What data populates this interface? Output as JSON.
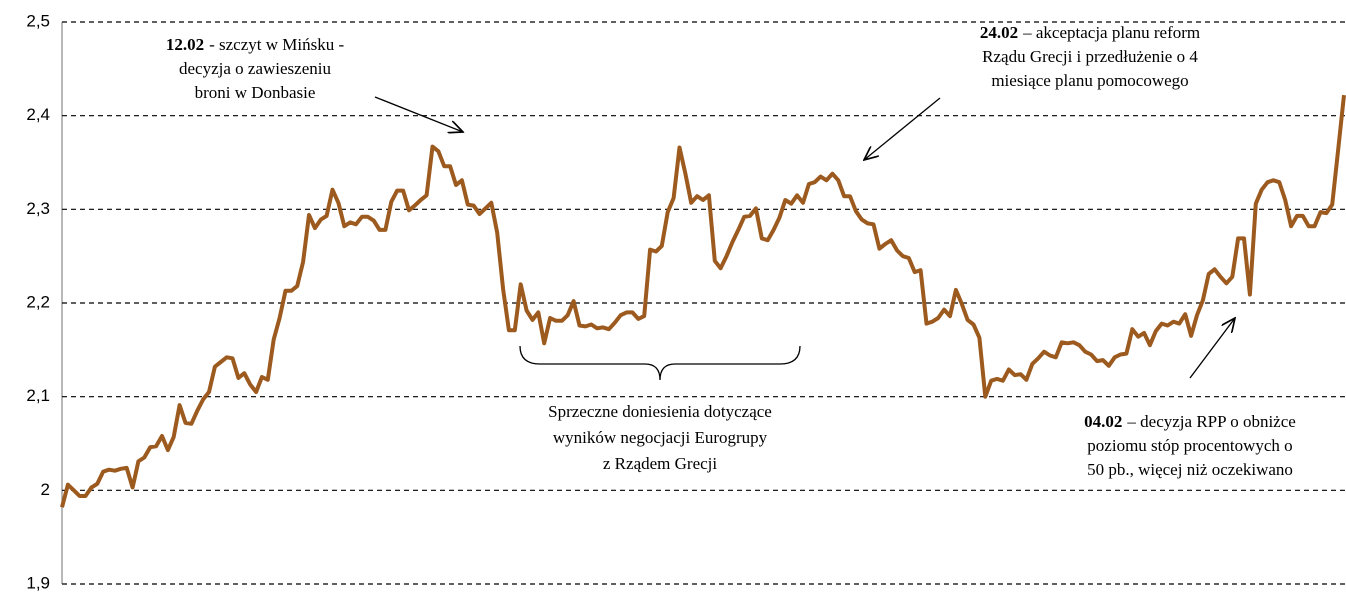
{
  "chart_data": {
    "type": "line",
    "color": "#9c5a1f",
    "grid": true,
    "ylim": [
      1.9,
      2.5
    ],
    "yticks": [
      {
        "value": 1.9,
        "label": "1,9"
      },
      2,
      {
        "value": 2.1,
        "label": "2,1"
      },
      {
        "value": 2.2,
        "label": "2,2"
      },
      {
        "value": 2.3,
        "label": "2,3"
      },
      {
        "value": 2.4,
        "label": "2,4"
      },
      {
        "value": 2.5,
        "label": "2,5"
      }
    ],
    "values": [
      1.982,
      2.006,
      2.0,
      1.994,
      1.994,
      2.003,
      2.007,
      2.02,
      2.022,
      2.021,
      2.023,
      2.024,
      2.003,
      2.031,
      2.035,
      2.046,
      2.047,
      2.058,
      2.043,
      2.057,
      2.091,
      2.072,
      2.071,
      2.085,
      2.097,
      2.105,
      2.132,
      2.137,
      2.142,
      2.141,
      2.12,
      2.125,
      2.113,
      2.105,
      2.121,
      2.118,
      2.161,
      2.184,
      2.213,
      2.213,
      2.218,
      2.244,
      2.294,
      2.28,
      2.289,
      2.293,
      2.321,
      2.307,
      2.282,
      2.286,
      2.284,
      2.292,
      2.292,
      2.288,
      2.278,
      2.278,
      2.308,
      2.32,
      2.32,
      2.299,
      2.304,
      2.31,
      2.315,
      2.367,
      2.362,
      2.346,
      2.346,
      2.326,
      2.331,
      2.305,
      2.304,
      2.295,
      2.301,
      2.307,
      2.275,
      2.215,
      2.171,
      2.171,
      2.22,
      2.192,
      2.182,
      2.19,
      2.157,
      2.184,
      2.181,
      2.181,
      2.187,
      2.202,
      2.176,
      2.175,
      2.177,
      2.173,
      2.174,
      2.172,
      2.179,
      2.187,
      2.19,
      2.19,
      2.183,
      2.186,
      2.257,
      2.255,
      2.261,
      2.297,
      2.312,
      2.366,
      2.338,
      2.307,
      2.314,
      2.31,
      2.315,
      2.245,
      2.237,
      2.25,
      2.265,
      2.278,
      2.292,
      2.293,
      2.301,
      2.269,
      2.267,
      2.278,
      2.291,
      2.31,
      2.306,
      2.315,
      2.307,
      2.327,
      2.329,
      2.335,
      2.331,
      2.338,
      2.331,
      2.314,
      2.314,
      2.298,
      2.289,
      2.285,
      2.284,
      2.258,
      2.263,
      2.267,
      2.256,
      2.25,
      2.248,
      2.233,
      2.235,
      2.178,
      2.18,
      2.184,
      2.193,
      2.186,
      2.214,
      2.199,
      2.182,
      2.177,
      2.163,
      2.1,
      2.117,
      2.119,
      2.117,
      2.129,
      2.123,
      2.124,
      2.118,
      2.135,
      2.141,
      2.148,
      2.144,
      2.142,
      2.158,
      2.157,
      2.158,
      2.155,
      2.148,
      2.145,
      2.138,
      2.139,
      2.133,
      2.142,
      2.145,
      2.146,
      2.172,
      2.164,
      2.168,
      2.155,
      2.17,
      2.178,
      2.176,
      2.18,
      2.178,
      2.188,
      2.165,
      2.187,
      2.203,
      2.231,
      2.236,
      2.228,
      2.221,
      2.228,
      2.269,
      2.269,
      2.209,
      2.306,
      2.321,
      2.329,
      2.331,
      2.329,
      2.31,
      2.282,
      2.293,
      2.293,
      2.282,
      2.282,
      2.297,
      2.296,
      2.305,
      2.363,
      2.422
    ],
    "annotations": [
      {
        "bold": "12.02",
        "lines": [
          "- szczyt w Mińsku -",
          "decyzja o zawieszeniu",
          "broni w Donbasie"
        ]
      },
      {
        "bold": "24.02",
        "lines": [
          "– akceptacja planu reform",
          "Rządu Grecji i przedłużenie o 4",
          "miesiące planu pomocowego"
        ]
      },
      {
        "lines": [
          "Sprzeczne doniesienia dotyczące",
          "wyników negocjacji Eurogrupy",
          "z Rządem Grecji"
        ]
      },
      {
        "bold": "04.02",
        "lines": [
          "– decyzja RPP o obniżce",
          "poziomu stóp procentowych o",
          "50 pb., więcej niż oczekiwano"
        ]
      }
    ]
  }
}
